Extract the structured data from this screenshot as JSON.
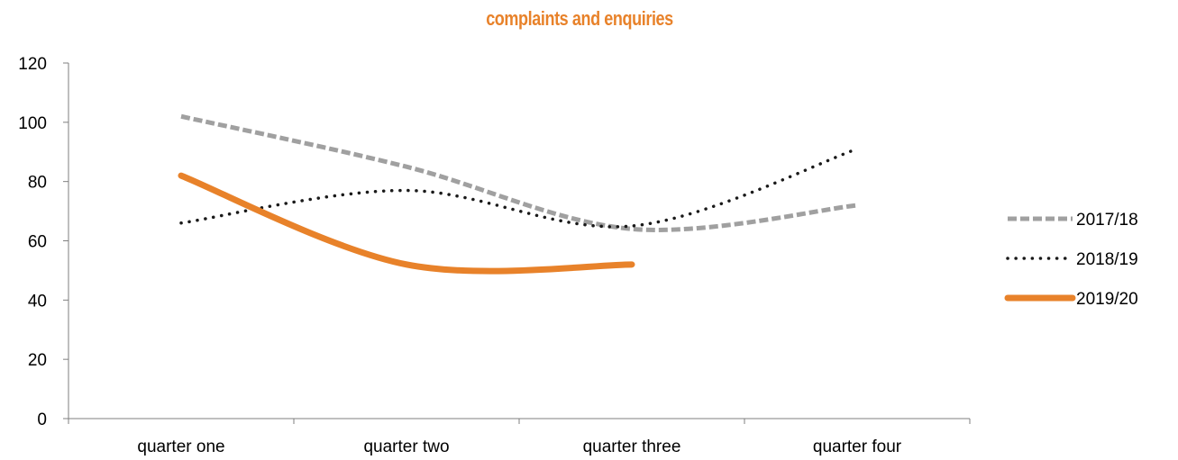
{
  "chart_data": {
    "type": "line",
    "title": "complaints and enquiries",
    "title_color": "#E8822A",
    "categories": [
      "quarter one",
      "quarter two",
      "quarter three",
      "quarter four"
    ],
    "ylim": [
      0,
      120
    ],
    "yticks": [
      0,
      20,
      40,
      60,
      80,
      100,
      120
    ],
    "ytick_labels": [
      "0",
      "20",
      "40",
      "60",
      "80",
      "100",
      "120"
    ],
    "grid": false,
    "legend_position": "right",
    "smooth": true,
    "series": [
      {
        "name": "2017/18",
        "values": [
          102,
          85,
          64,
          72
        ],
        "color": "#A0A0A0",
        "style": "dashed"
      },
      {
        "name": "2018/19",
        "values": [
          66,
          77,
          65,
          91
        ],
        "color": "#1A1A1A",
        "style": "dotted"
      },
      {
        "name": "2019/20",
        "values": [
          82,
          52,
          52,
          null
        ],
        "color": "#E8822A",
        "style": "solid-thick"
      }
    ]
  }
}
